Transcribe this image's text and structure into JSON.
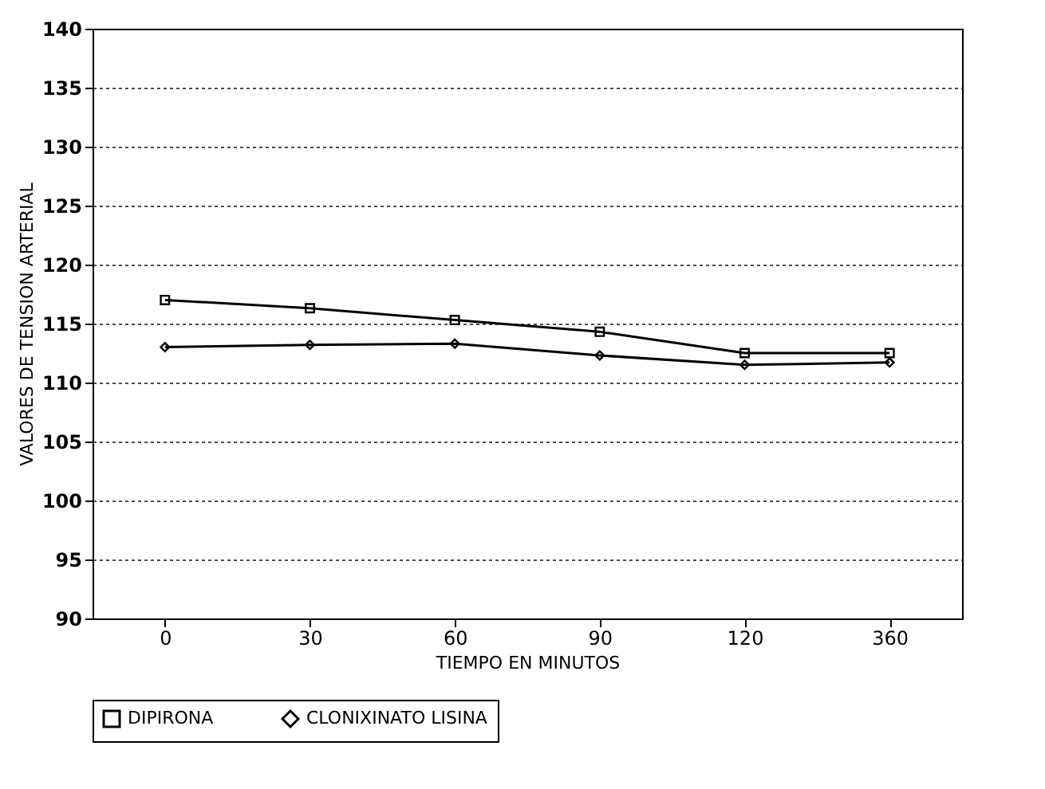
{
  "chart_data": {
    "type": "line",
    "xlabel": "TIEMPO EN MINUTOS",
    "ylabel": "VALORES DE TENSION ARTERIAL",
    "categories": [
      "0",
      "30",
      "60",
      "90",
      "120",
      "360"
    ],
    "series": [
      {
        "name": "DIPIRONA",
        "color": "#000000",
        "marker": "square",
        "values": [
          117,
          116.3,
          115.3,
          114.3,
          112.5,
          112.5
        ]
      },
      {
        "name": "CLONIXINATO LISINA",
        "color": "#000000",
        "marker": "diamond",
        "values": [
          113,
          113.2,
          113.3,
          112.3,
          111.5,
          111.7
        ]
      }
    ],
    "ylim": [
      90,
      140
    ],
    "yticks": [
      90,
      95,
      100,
      105,
      110,
      115,
      120,
      125,
      130,
      135,
      140
    ],
    "grid": "y",
    "legend": "bottom",
    "line_style": "solid"
  }
}
